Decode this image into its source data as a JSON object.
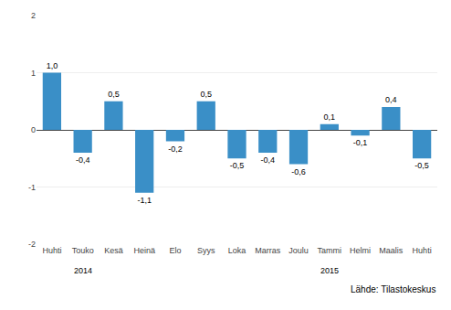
{
  "chart_data": {
    "type": "bar",
    "categories": [
      "Huhti",
      "Touko",
      "Kesä",
      "Heinä",
      "Elo",
      "Syys",
      "Loka",
      "Marras",
      "Joulu",
      "Tammi",
      "Helmi",
      "Maalis",
      "Huhti"
    ],
    "values": [
      1.0,
      -0.4,
      0.5,
      -1.1,
      -0.2,
      0.5,
      -0.5,
      -0.4,
      -0.6,
      0.1,
      -0.1,
      0.4,
      -0.5
    ],
    "value_labels": [
      "1,0",
      "-0,4",
      "0,5",
      "-1,1",
      "-0,2",
      "0,5",
      "-0,5",
      "-0,4",
      "-0,6",
      "0,1",
      "-0,1",
      "0,4",
      "-0,5"
    ],
    "data_labels": true,
    "color": "#3a8fc7",
    "ylim": [
      -2,
      2
    ],
    "yticks": [
      -2,
      -1,
      0,
      1,
      2
    ],
    "grid": true,
    "annotations": [
      {
        "text": "2014",
        "category": "Touko"
      },
      {
        "text": "2015",
        "category": "Tammi"
      }
    ],
    "source": "Lähde: Tilastokeskus"
  }
}
